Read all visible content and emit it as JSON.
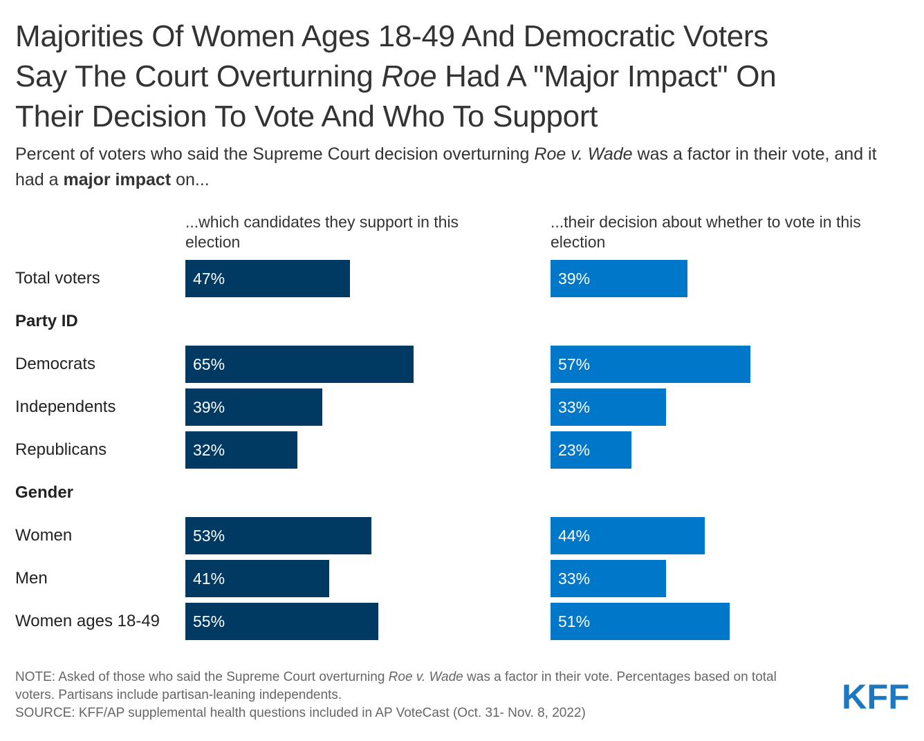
{
  "title_line1": "Majorities Of Women Ages 18-49 And Democratic Voters",
  "title_line2_a": "Say The Court Overturning ",
  "title_line2_italic": "Roe",
  "title_line2_b": " Had A \"Major Impact\" On",
  "title_line3": "Their Decision To Vote And Who To Support",
  "subtitle_a": "Percent of voters who said the Supreme Court decision overturning ",
  "subtitle_italic": "Roe v. Wade",
  "subtitle_b": " was a factor in their vote, and it had a ",
  "subtitle_bold": "major impact",
  "subtitle_c": " on...",
  "note_a": "NOTE: Asked of those who said the Supreme Court overturning ",
  "note_italic": "Roe v. Wade",
  "note_b": " was a factor in their vote. Percentages based on total voters. Partisans include partisan-leaning independents.",
  "source": "SOURCE: KFF/AP supplemental health questions included in AP VoteCast (Oct. 31- Nov. 8, 2022)",
  "logo_text": "KFF",
  "colors": {
    "series_candidates": "#003a63",
    "series_vote": "#0077c8",
    "logo": "#1b78c2"
  },
  "chart_data": {
    "type": "bar",
    "orientation": "horizontal",
    "value_suffix": "%",
    "xlim": [
      0,
      100
    ],
    "rows": [
      {
        "label": "Total voters",
        "kind": "category"
      },
      {
        "label": "Party ID",
        "kind": "group"
      },
      {
        "label": "Democrats",
        "kind": "category"
      },
      {
        "label": "Independents",
        "kind": "category"
      },
      {
        "label": "Republicans",
        "kind": "category"
      },
      {
        "label": "Gender",
        "kind": "group"
      },
      {
        "label": "Women",
        "kind": "category"
      },
      {
        "label": "Men",
        "kind": "category"
      },
      {
        "label": "Women ages 18-49",
        "kind": "category"
      }
    ],
    "categories": [
      "Total voters",
      "Democrats",
      "Independents",
      "Republicans",
      "Women",
      "Men",
      "Women ages 18-49"
    ],
    "series": [
      {
        "name": "...which candidates they support in this election",
        "values": [
          47,
          65,
          39,
          32,
          53,
          41,
          55
        ]
      },
      {
        "name": "...their decision about whether to vote in this election",
        "values": [
          39,
          57,
          33,
          23,
          44,
          33,
          51
        ]
      }
    ],
    "grid": false,
    "legend": "column headers above each panel"
  }
}
